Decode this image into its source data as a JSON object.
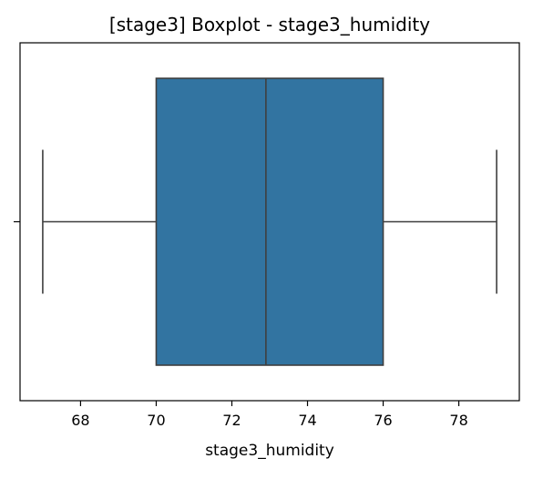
{
  "chart_data": {
    "type": "boxplot",
    "title": "[stage3] Boxplot - stage3_humidity",
    "xlabel": "stage3_humidity",
    "ylabel": "",
    "xlim": [
      66.4,
      79.6
    ],
    "xticks": [
      68,
      70,
      72,
      74,
      76,
      78
    ],
    "xtick_labels": [
      "68",
      "70",
      "72",
      "74",
      "76",
      "78"
    ],
    "grid": false,
    "orientation": "horizontal",
    "box": {
      "whisker_low": 67.0,
      "q1": 70.0,
      "median": 72.9,
      "q3": 76.0,
      "whisker_high": 79.0
    },
    "colors": {
      "box_fill": "#3274a1",
      "line": "#3f3f3f",
      "axes": "#000000"
    }
  }
}
